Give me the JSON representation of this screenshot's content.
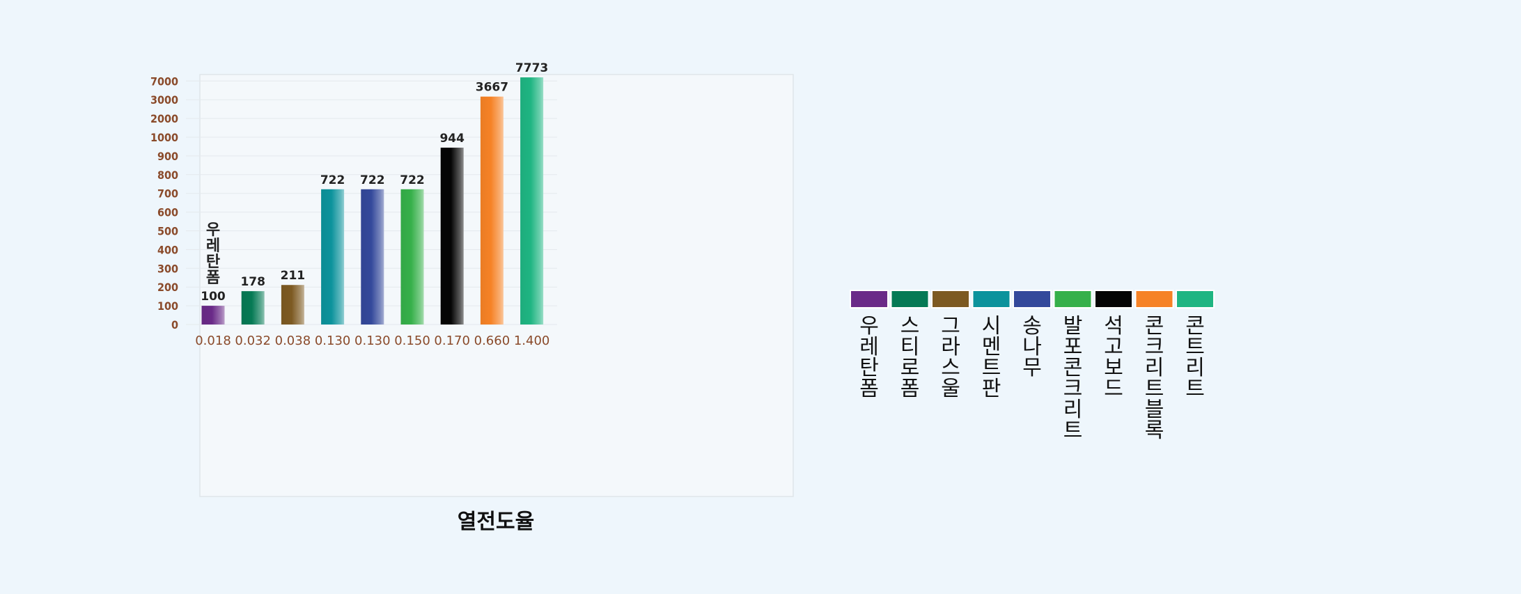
{
  "chart_data": {
    "type": "bar",
    "xlabel": "열전도율",
    "categories": [
      "0.018",
      "0.032",
      "0.038",
      "0.130",
      "0.130",
      "0.150",
      "0.170",
      "0.660",
      "1.400"
    ],
    "values": [
      100,
      178,
      211,
      722,
      722,
      722,
      944,
      3667,
      7773
    ],
    "bar_labels": [
      "100",
      "178",
      "211",
      "722",
      "722",
      "722",
      "944",
      "3667",
      "7773"
    ],
    "ytick_labels": [
      "0",
      "100",
      "200",
      "300",
      "400",
      "500",
      "600",
      "700",
      "800",
      "900",
      "1000",
      "2000",
      "3000",
      "7000"
    ],
    "first_bar_annotation": "우레탄폼",
    "series": [
      {
        "name": "우레탄폼",
        "color": "#6a2a88"
      },
      {
        "name": "스티로폼",
        "color": "#067a55"
      },
      {
        "name": "그라스울",
        "color": "#7d5a22"
      },
      {
        "name": "시멘트판",
        "color": "#0c939c"
      },
      {
        "name": "송나무",
        "color": "#34499b"
      },
      {
        "name": "발포콘크리트",
        "color": "#36b04a"
      },
      {
        "name": "석고보드",
        "color": "#050505"
      },
      {
        "name": "콘크리트블록",
        "color": "#f68226"
      },
      {
        "name": "콘트리트",
        "color": "#1fb582"
      }
    ],
    "legend_position": "right",
    "grid": true
  }
}
